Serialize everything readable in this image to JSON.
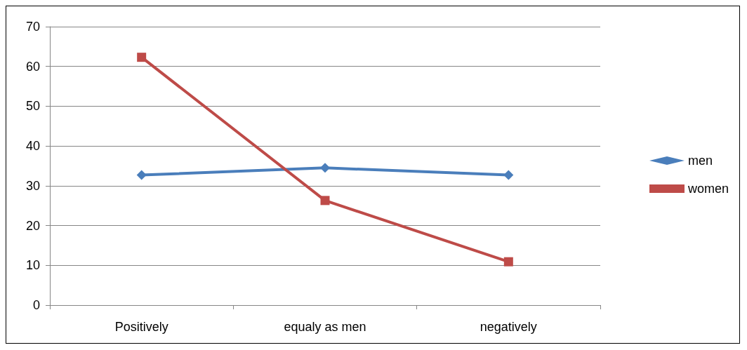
{
  "chart_data": {
    "type": "line",
    "categories": [
      "Positively",
      "equaly as men",
      "negatively"
    ],
    "series": [
      {
        "name": "men",
        "color": "#4a7ebb",
        "marker": "diamond",
        "values": [
          32.7,
          34.5,
          32.7
        ]
      },
      {
        "name": "women",
        "color": "#be4b48",
        "marker": "square",
        "values": [
          62.3,
          26.3,
          10.9
        ]
      }
    ],
    "ylim": [
      0,
      70
    ],
    "yticks": [
      0,
      10,
      20,
      30,
      40,
      50,
      60,
      70
    ],
    "grid": "y",
    "legend": "right"
  }
}
